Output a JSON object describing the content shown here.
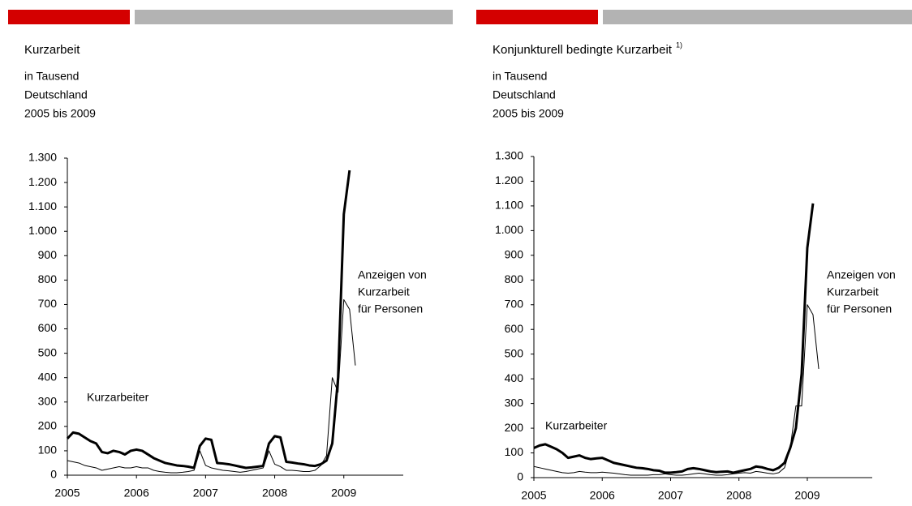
{
  "chart_data": [
    {
      "type": "line",
      "title": "Kurzarbeit",
      "subtitle": [
        "in Tausend",
        "Deutschland",
        "2005 bis 2009"
      ],
      "x": [
        2005,
        2005.083,
        2005.167,
        2005.25,
        2005.333,
        2005.417,
        2005.5,
        2005.583,
        2005.667,
        2005.75,
        2005.833,
        2005.917,
        2006,
        2006.083,
        2006.167,
        2006.25,
        2006.333,
        2006.417,
        2006.5,
        2006.583,
        2006.667,
        2006.75,
        2006.833,
        2006.917,
        2007,
        2007.083,
        2007.167,
        2007.25,
        2007.333,
        2007.417,
        2007.5,
        2007.583,
        2007.667,
        2007.75,
        2007.833,
        2007.917,
        2008,
        2008.083,
        2008.167,
        2008.25,
        2008.333,
        2008.417,
        2008.5,
        2008.583,
        2008.667,
        2008.75,
        2008.833,
        2008.917,
        2009,
        2009.083,
        2009.167
      ],
      "series": [
        {
          "name": [
            "Kurzarbeiter"
          ],
          "color": "#000000",
          "width": 3,
          "values": [
            150,
            175,
            170,
            155,
            140,
            130,
            95,
            90,
            100,
            95,
            85,
            100,
            105,
            100,
            85,
            70,
            60,
            50,
            45,
            40,
            38,
            35,
            30,
            120,
            150,
            145,
            50,
            48,
            45,
            40,
            35,
            30,
            32,
            35,
            38,
            130,
            160,
            155,
            55,
            52,
            48,
            45,
            40,
            38,
            45,
            60,
            130,
            400,
            1070,
            1250,
            null
          ]
        },
        {
          "name": [
            "Anzeigen von",
            "Kurzarbeit",
            "für Personen"
          ],
          "color": "#000000",
          "width": 1,
          "values": [
            60,
            55,
            50,
            40,
            35,
            30,
            20,
            25,
            30,
            35,
            30,
            30,
            35,
            30,
            30,
            20,
            15,
            12,
            10,
            10,
            12,
            15,
            20,
            100,
            40,
            30,
            25,
            20,
            18,
            15,
            12,
            15,
            20,
            25,
            30,
            100,
            45,
            35,
            20,
            20,
            18,
            15,
            15,
            20,
            40,
            80,
            400,
            340,
            720,
            680,
            450
          ]
        }
      ],
      "xlim": [
        2005,
        2009.86
      ],
      "xticks": [
        2005,
        2006,
        2007,
        2008,
        2009
      ],
      "ylim": [
        0,
        1300
      ],
      "yticks": [
        0,
        100,
        200,
        300,
        400,
        500,
        600,
        700,
        800,
        900,
        {
          "value": 1000,
          "label": "1.000"
        },
        {
          "value": 1100,
          "label": "1.100"
        },
        {
          "value": 1200,
          "label": "1.200"
        },
        {
          "value": 1300,
          "label": "1.300"
        }
      ]
    },
    {
      "type": "line",
      "title": "Konjunkturell bedingte Kurzarbeit",
      "title_footnote": "1)",
      "subtitle": [
        "in Tausend",
        "Deutschland",
        "2005 bis 2009"
      ],
      "x": [
        2005,
        2005.083,
        2005.167,
        2005.25,
        2005.333,
        2005.417,
        2005.5,
        2005.583,
        2005.667,
        2005.75,
        2005.833,
        2005.917,
        2006,
        2006.083,
        2006.167,
        2006.25,
        2006.333,
        2006.417,
        2006.5,
        2006.583,
        2006.667,
        2006.75,
        2006.833,
        2006.917,
        2007,
        2007.083,
        2007.167,
        2007.25,
        2007.333,
        2007.417,
        2007.5,
        2007.583,
        2007.667,
        2007.75,
        2007.833,
        2007.917,
        2008,
        2008.083,
        2008.167,
        2008.25,
        2008.333,
        2008.417,
        2008.5,
        2008.583,
        2008.667,
        2008.75,
        2008.833,
        2008.917,
        2009,
        2009.083,
        2009.167
      ],
      "series": [
        {
          "name": [
            "Kurzarbeiter"
          ],
          "color": "#000000",
          "width": 3,
          "values": [
            120,
            130,
            135,
            125,
            115,
            100,
            80,
            85,
            90,
            80,
            75,
            78,
            80,
            70,
            60,
            55,
            50,
            45,
            40,
            38,
            35,
            30,
            28,
            20,
            20,
            22,
            25,
            35,
            38,
            35,
            30,
            25,
            22,
            24,
            25,
            20,
            25,
            30,
            35,
            45,
            42,
            35,
            30,
            40,
            60,
            120,
            200,
            420,
            930,
            1110,
            null
          ]
        },
        {
          "name": [
            "Anzeigen von",
            "Kurzarbeit",
            "für Personen"
          ],
          "color": "#000000",
          "width": 1,
          "values": [
            45,
            40,
            35,
            30,
            25,
            20,
            18,
            20,
            25,
            22,
            20,
            20,
            22,
            20,
            18,
            15,
            12,
            10,
            10,
            10,
            10,
            12,
            12,
            15,
            12,
            10,
            10,
            12,
            15,
            18,
            15,
            12,
            10,
            10,
            12,
            15,
            18,
            20,
            18,
            25,
            22,
            18,
            15,
            20,
            40,
            120,
            290,
            290,
            700,
            660,
            440
          ]
        }
      ],
      "xlim": [
        2005,
        2009.95
      ],
      "xticks": [
        2005,
        2006,
        2007,
        2008,
        2009
      ],
      "ylim": [
        0,
        1300
      ],
      "yticks": [
        0,
        100,
        200,
        300,
        400,
        500,
        600,
        700,
        800,
        900,
        {
          "value": 1000,
          "label": "1.000"
        },
        {
          "value": 1100,
          "label": "1.100"
        },
        {
          "value": 1200,
          "label": "1.200"
        },
        {
          "value": 1300,
          "label": "1.300"
        }
      ]
    }
  ]
}
